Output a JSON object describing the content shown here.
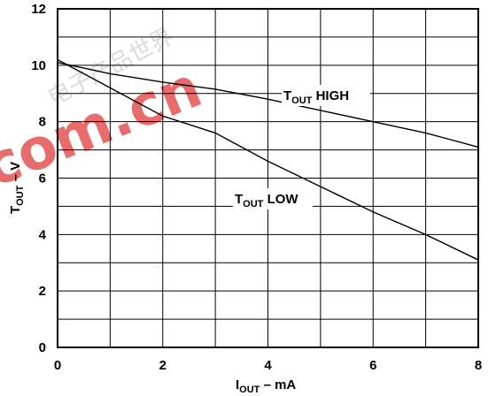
{
  "watermark": {
    "text": "com.cn",
    "cjk": "电子产品世界",
    "color": "#e23b3b"
  },
  "chart_data": {
    "type": "line",
    "xlabel": "I",
    "xlabel_sub": "OUT",
    "xlabel_rest": " – mA",
    "ylabel": "T",
    "ylabel_sub": "OUT",
    "ylabel_rest": " – V",
    "xlim": [
      0,
      8
    ],
    "ylim": [
      0,
      12
    ],
    "x_ticks": [
      "0",
      "2",
      "4",
      "6",
      "8"
    ],
    "y_ticks": [
      "0",
      "2",
      "4",
      "6",
      "8",
      "10",
      "12"
    ],
    "grid": true,
    "series": [
      {
        "name": "T",
        "name_sub": "OUT",
        "name_rest": " HIGH",
        "x": [
          0,
          1,
          2,
          3,
          4,
          5,
          6,
          7,
          8
        ],
        "y": [
          10.1,
          9.7,
          9.4,
          9.15,
          8.8,
          8.4,
          8.0,
          7.6,
          7.1
        ]
      },
      {
        "name": "T",
        "name_sub": "OUT",
        "name_rest": " LOW",
        "x": [
          0,
          1,
          2,
          3,
          4,
          5,
          6,
          7,
          8
        ],
        "y": [
          10.2,
          9.2,
          8.2,
          7.6,
          6.6,
          5.7,
          4.8,
          4.0,
          3.1
        ]
      }
    ]
  }
}
